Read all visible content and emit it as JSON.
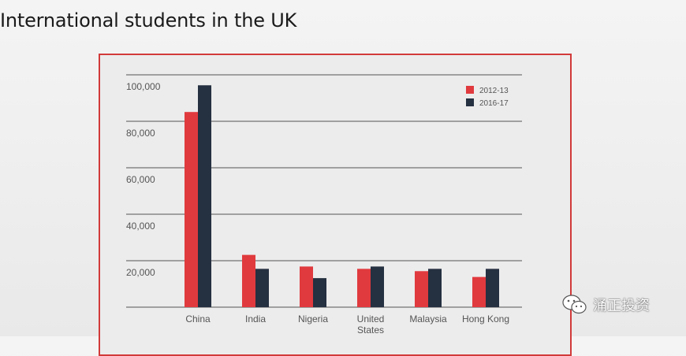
{
  "slide": {
    "title": "International students in the UK"
  },
  "watermark": {
    "text": "涌正投资",
    "icon": "wechat-icon"
  },
  "colors": {
    "series_2012": "#e03a3e",
    "series_2016": "#253041",
    "frame": "#d23a3a",
    "grid": "#555555"
  },
  "chart_data": {
    "type": "bar",
    "title": "",
    "xlabel": "",
    "ylabel": "",
    "ylim": [
      0,
      100000
    ],
    "yticks": [
      {
        "value": 20000,
        "label": "20,000"
      },
      {
        "value": 40000,
        "label": "40,000"
      },
      {
        "value": 60000,
        "label": "60,000"
      },
      {
        "value": 80000,
        "label": "80,000"
      },
      {
        "value": 100000,
        "label": "100,000"
      }
    ],
    "categories": [
      "China",
      "India",
      "Nigeria",
      "United States",
      "Malaysia",
      "Hong Kong"
    ],
    "category_lines": [
      [
        "China"
      ],
      [
        "India"
      ],
      [
        "Nigeria"
      ],
      [
        "United",
        "States"
      ],
      [
        "Malaysia"
      ],
      [
        "Hong Kong"
      ]
    ],
    "series": [
      {
        "name": "2012-13",
        "values": [
          84000,
          22500,
          17500,
          16500,
          15500,
          13000
        ]
      },
      {
        "name": "2016-17",
        "values": [
          95500,
          16500,
          12500,
          17500,
          16500,
          16500
        ]
      }
    ],
    "grid": true,
    "legend": "top-right"
  }
}
